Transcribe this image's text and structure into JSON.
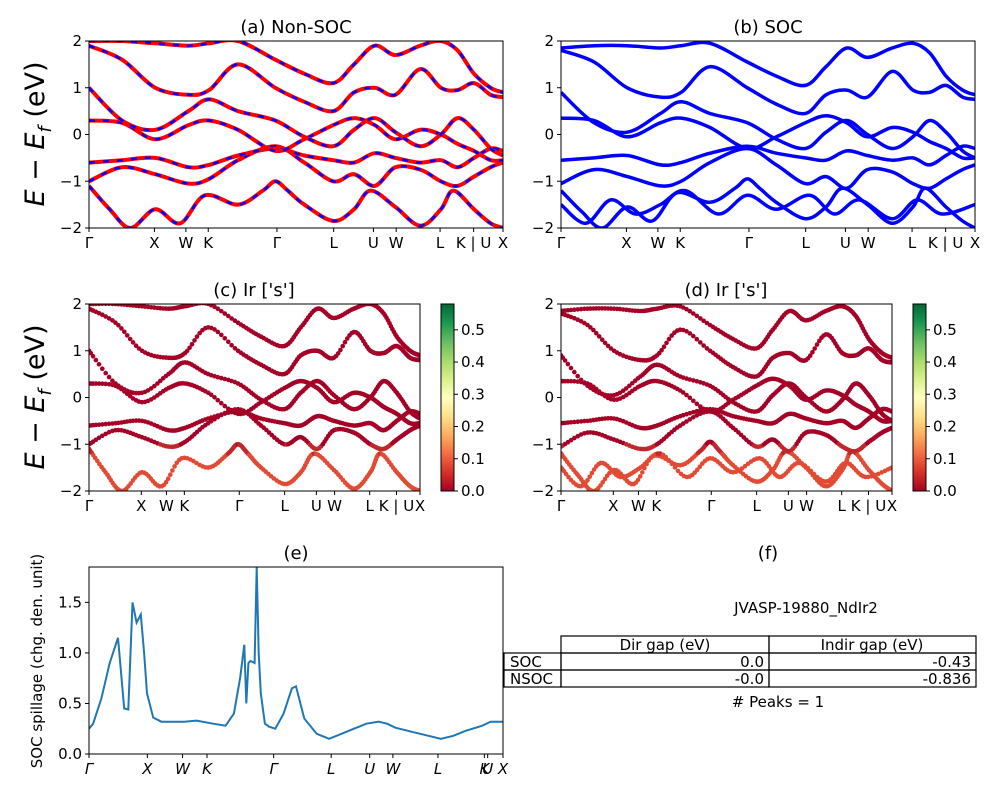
{
  "figure": {
    "titles": {
      "a": "(a) Non-SOC",
      "b": "(b) SOC",
      "c": "(c)  Ir ['s']",
      "d": "(d) Ir ['s']",
      "e": "(e)",
      "f": "(f)"
    },
    "band_ylabel": "E − E_f (eV)",
    "spillage_ylabel": "SOC spillage (chg. den. unit)"
  },
  "chart_data": [
    {
      "panel": "a",
      "type": "line",
      "title": "(a) Non-SOC",
      "ylabel": "E − E_f (eV)",
      "ylim": [
        -2,
        2
      ],
      "ytick_labels": [
        "−2",
        "−1",
        "0",
        "1",
        "2"
      ],
      "kpath_labels": [
        "Γ",
        "X",
        "W",
        "K",
        "Γ",
        "L",
        "U",
        "W",
        "L",
        "K | U",
        "X"
      ],
      "kpath_positions": [
        0,
        0.158,
        0.234,
        0.288,
        0.454,
        0.591,
        0.687,
        0.742,
        0.848,
        0.929,
        1.0
      ],
      "styles": {
        "outer": "#ff0000",
        "inner": "#0000ff",
        "dashed": true
      },
      "series": [
        {
          "x": [
            0,
            0.08,
            0.16,
            0.24,
            0.29,
            0.36,
            0.45,
            0.52,
            0.59,
            0.64,
            0.69,
            0.74,
            0.8,
            0.85,
            0.89,
            0.93,
            0.97,
            1.0
          ],
          "y": [
            -1.0,
            -0.7,
            -0.85,
            -1.05,
            -0.95,
            -0.55,
            -0.25,
            -0.6,
            -1.0,
            -0.85,
            -1.1,
            -0.7,
            -0.75,
            -1.0,
            -1.1,
            -0.9,
            -0.7,
            -0.6
          ]
        },
        {
          "x": [
            0,
            0.08,
            0.16,
            0.24,
            0.29,
            0.36,
            0.45,
            0.52,
            0.59,
            0.64,
            0.69,
            0.74,
            0.8,
            0.85,
            0.89,
            0.93,
            0.97,
            1.0
          ],
          "y": [
            -0.6,
            -0.55,
            -0.5,
            -0.7,
            -0.65,
            -0.45,
            -0.3,
            -0.45,
            -0.55,
            -0.6,
            -0.4,
            -0.5,
            -0.6,
            -0.55,
            -0.7,
            -0.5,
            -0.3,
            -0.35
          ]
        },
        {
          "x": [
            0,
            0.08,
            0.16,
            0.24,
            0.29,
            0.36,
            0.45,
            0.52,
            0.59,
            0.64,
            0.69,
            0.74,
            0.8,
            0.85,
            0.89,
            0.93,
            0.97,
            1.0
          ],
          "y": [
            0.3,
            0.25,
            -0.1,
            0.2,
            0.3,
            0.1,
            -0.35,
            -0.1,
            0.2,
            0.35,
            0.2,
            -0.1,
            0.1,
            0.0,
            -0.2,
            -0.35,
            -0.55,
            -0.55
          ]
        },
        {
          "x": [
            0,
            0.08,
            0.16,
            0.24,
            0.29,
            0.36,
            0.45,
            0.52,
            0.59,
            0.64,
            0.69,
            0.74,
            0.8,
            0.85,
            0.89,
            0.93,
            0.97,
            1.0
          ],
          "y": [
            1.0,
            0.3,
            0.1,
            0.5,
            0.75,
            0.5,
            0.3,
            -0.05,
            -0.25,
            0.1,
            0.35,
            0.05,
            -0.25,
            0.0,
            0.35,
            0.1,
            -0.3,
            -0.45
          ]
        },
        {
          "x": [
            0,
            0.08,
            0.16,
            0.24,
            0.29,
            0.36,
            0.45,
            0.52,
            0.59,
            0.64,
            0.69,
            0.74,
            0.8,
            0.85,
            0.89,
            0.93,
            0.97,
            1.0
          ],
          "y": [
            1.9,
            1.6,
            1.0,
            0.85,
            0.95,
            1.5,
            1.0,
            0.7,
            0.5,
            0.9,
            1.0,
            0.85,
            1.4,
            1.0,
            0.95,
            1.1,
            0.85,
            0.8
          ]
        },
        {
          "x": [
            0,
            0.08,
            0.16,
            0.24,
            0.29,
            0.36,
            0.45,
            0.52,
            0.59,
            0.64,
            0.69,
            0.74,
            0.8,
            0.85,
            0.89,
            0.93,
            0.97,
            1.0
          ],
          "y": [
            2.0,
            2.0,
            1.95,
            1.9,
            1.95,
            2.0,
            1.6,
            1.3,
            1.1,
            1.5,
            1.9,
            1.7,
            1.9,
            2.0,
            1.8,
            1.3,
            1.0,
            0.9
          ]
        },
        {
          "x": [
            0,
            0.05,
            0.1,
            0.16,
            0.22,
            0.28,
            0.36,
            0.42,
            0.45,
            0.48,
            0.52,
            0.59,
            0.64,
            0.68,
            0.74,
            0.8,
            0.85,
            0.88,
            0.93,
            0.97,
            1.0
          ],
          "y": [
            -1.1,
            -1.6,
            -2.0,
            -1.6,
            -1.9,
            -1.3,
            -1.5,
            -1.2,
            -1.0,
            -1.2,
            -1.5,
            -1.85,
            -1.6,
            -1.2,
            -1.55,
            -1.95,
            -1.6,
            -1.2,
            -1.6,
            -1.9,
            -2.0
          ]
        }
      ]
    },
    {
      "panel": "b",
      "type": "line",
      "title": "(b) SOC",
      "ylim": [
        -2,
        2
      ],
      "ytick_labels": [
        "−2",
        "−1",
        "0",
        "1",
        "2"
      ],
      "kpath_labels": [
        "Γ",
        "X",
        "W",
        "K",
        "Γ",
        "L",
        "U",
        "W",
        "L",
        "K | U",
        "X"
      ],
      "kpath_positions": [
        0,
        0.158,
        0.234,
        0.288,
        0.454,
        0.591,
        0.687,
        0.742,
        0.848,
        0.929,
        1.0
      ],
      "styles": {
        "color": "#0000ff"
      },
      "series": [
        {
          "x": [
            0,
            0.08,
            0.16,
            0.24,
            0.29,
            0.36,
            0.45,
            0.52,
            0.59,
            0.64,
            0.69,
            0.74,
            0.8,
            0.85,
            0.89,
            0.93,
            0.97,
            1.0
          ],
          "y": [
            -1.05,
            -0.75,
            -0.9,
            -1.1,
            -1.0,
            -0.6,
            -0.3,
            -0.65,
            -1.05,
            -0.9,
            -1.15,
            -0.75,
            -0.8,
            -1.05,
            -1.15,
            -0.95,
            -0.75,
            -0.65
          ]
        },
        {
          "x": [
            0,
            0.08,
            0.16,
            0.24,
            0.29,
            0.36,
            0.45,
            0.52,
            0.59,
            0.64,
            0.69,
            0.74,
            0.8,
            0.85,
            0.89,
            0.93,
            0.97,
            1.0
          ],
          "y": [
            -0.55,
            -0.5,
            -0.45,
            -0.65,
            -0.6,
            -0.4,
            -0.25,
            -0.4,
            -0.5,
            -0.55,
            -0.35,
            -0.45,
            -0.55,
            -0.5,
            -0.65,
            -0.45,
            -0.25,
            -0.3
          ]
        },
        {
          "x": [
            0,
            0.08,
            0.16,
            0.24,
            0.29,
            0.36,
            0.45,
            0.52,
            0.59,
            0.64,
            0.69,
            0.74,
            0.8,
            0.85,
            0.89,
            0.93,
            0.97,
            1.0
          ],
          "y": [
            0.35,
            0.3,
            -0.05,
            0.25,
            0.35,
            0.15,
            -0.3,
            -0.05,
            0.25,
            0.4,
            0.25,
            -0.05,
            0.15,
            0.05,
            -0.15,
            -0.3,
            -0.5,
            -0.5
          ]
        },
        {
          "x": [
            0,
            0.08,
            0.16,
            0.24,
            0.29,
            0.36,
            0.45,
            0.52,
            0.59,
            0.64,
            0.69,
            0.74,
            0.8,
            0.85,
            0.89,
            0.93,
            0.97,
            1.0
          ],
          "y": [
            0.9,
            0.25,
            0.05,
            0.45,
            0.7,
            0.45,
            0.25,
            -0.1,
            -0.3,
            0.05,
            0.3,
            0.0,
            -0.3,
            -0.05,
            0.3,
            0.05,
            -0.35,
            -0.5
          ]
        },
        {
          "x": [
            0,
            0.08,
            0.16,
            0.24,
            0.29,
            0.36,
            0.45,
            0.52,
            0.59,
            0.64,
            0.69,
            0.74,
            0.8,
            0.85,
            0.89,
            0.93,
            0.97,
            1.0
          ],
          "y": [
            1.8,
            1.55,
            1.0,
            0.8,
            0.9,
            1.45,
            1.0,
            0.65,
            0.45,
            0.85,
            0.95,
            0.8,
            1.35,
            0.95,
            0.9,
            1.05,
            0.8,
            0.75
          ]
        },
        {
          "x": [
            0,
            0.08,
            0.16,
            0.24,
            0.29,
            0.36,
            0.45,
            0.52,
            0.59,
            0.64,
            0.69,
            0.74,
            0.8,
            0.85,
            0.89,
            0.93,
            0.97,
            1.0
          ],
          "y": [
            1.85,
            1.9,
            1.9,
            1.85,
            1.9,
            1.95,
            1.55,
            1.25,
            1.05,
            1.45,
            1.85,
            1.65,
            1.85,
            1.95,
            1.75,
            1.25,
            0.95,
            0.85
          ]
        },
        {
          "x": [
            0,
            0.05,
            0.1,
            0.16,
            0.22,
            0.28,
            0.36,
            0.42,
            0.45,
            0.48,
            0.52,
            0.59,
            0.64,
            0.68,
            0.74,
            0.8,
            0.85,
            0.88,
            0.93,
            0.97,
            1.0
          ],
          "y": [
            -1.2,
            -1.65,
            -2.0,
            -1.55,
            -1.85,
            -1.25,
            -1.45,
            -1.15,
            -0.95,
            -1.15,
            -1.45,
            -1.8,
            -1.55,
            -1.15,
            -1.5,
            -1.9,
            -1.55,
            -1.15,
            -1.55,
            -1.85,
            -2.0
          ]
        },
        {
          "x": [
            0,
            0.06,
            0.12,
            0.18,
            0.24,
            0.3,
            0.38,
            0.45,
            0.52,
            0.6,
            0.66,
            0.72,
            0.8,
            0.86,
            0.92,
            1.0
          ],
          "y": [
            -1.5,
            -1.9,
            -1.4,
            -1.7,
            -1.5,
            -1.2,
            -1.7,
            -1.3,
            -1.6,
            -1.3,
            -1.7,
            -1.4,
            -1.8,
            -1.4,
            -1.7,
            -1.5
          ]
        }
      ]
    },
    {
      "panel": "c",
      "type": "scatter",
      "title": "(c)  Ir ['s']",
      "ylabel": "E − E_f (eV)",
      "ylim": [
        -2,
        2
      ],
      "ytick_labels": [
        "−2",
        "−1",
        "0",
        "1",
        "2"
      ],
      "kpath_labels": [
        "Γ",
        "X",
        "W",
        "K",
        "Γ",
        "L",
        "U",
        "W",
        "L",
        "K | U",
        "X"
      ],
      "kpath_positions": [
        0,
        0.158,
        0.234,
        0.288,
        0.454,
        0.591,
        0.687,
        0.742,
        0.848,
        0.929,
        1.0
      ],
      "colorbar": {
        "vmin": 0.0,
        "vmax": 0.58,
        "cmap": "RdYlGn",
        "tick_labels": [
          "0.0",
          "0.1",
          "0.2",
          "0.3",
          "0.4",
          "0.5"
        ],
        "ticks": [
          0.0,
          0.1,
          0.2,
          0.3,
          0.4,
          0.5
        ]
      },
      "bands_same_as": "a"
    },
    {
      "panel": "d",
      "type": "scatter",
      "title": "(d) Ir ['s']",
      "ylim": [
        -2,
        2
      ],
      "ytick_labels": [
        "−2",
        "−1",
        "0",
        "1",
        "2"
      ],
      "kpath_labels": [
        "Γ",
        "X",
        "W",
        "K",
        "Γ",
        "L",
        "U",
        "W",
        "L",
        "K | U",
        "X"
      ],
      "kpath_positions": [
        0,
        0.158,
        0.234,
        0.288,
        0.454,
        0.591,
        0.687,
        0.742,
        0.848,
        0.929,
        1.0
      ],
      "colorbar": {
        "vmin": 0.0,
        "vmax": 0.58,
        "cmap": "RdYlGn",
        "tick_labels": [
          "0.0",
          "0.1",
          "0.2",
          "0.3",
          "0.4",
          "0.5"
        ],
        "ticks": [
          0.0,
          0.1,
          0.2,
          0.3,
          0.4,
          0.5
        ]
      },
      "bands_same_as": "b"
    },
    {
      "panel": "e",
      "type": "line",
      "title": "(e)",
      "ylabel": "SOC spillage (chg. den. unit)",
      "ylim": [
        0,
        1.85
      ],
      "yticks": [
        0.0,
        0.5,
        1.0,
        1.5
      ],
      "ytick_labels": [
        "0.0",
        "0.5",
        "1.0",
        "1.5"
      ],
      "xtick_labels": [
        "Γ",
        "X",
        "W",
        "K",
        "Γ",
        "L",
        "U",
        "W",
        "L",
        "K",
        "U",
        "X"
      ],
      "xtick_positions": [
        0,
        0.141,
        0.226,
        0.285,
        0.446,
        0.585,
        0.678,
        0.734,
        0.843,
        0.955,
        0.963,
        1.0
      ],
      "color": "#1f77b4",
      "x": [
        0,
        0.01,
        0.03,
        0.05,
        0.07,
        0.085,
        0.095,
        0.105,
        0.115,
        0.125,
        0.133,
        0.14,
        0.155,
        0.175,
        0.2,
        0.23,
        0.26,
        0.3,
        0.33,
        0.35,
        0.365,
        0.375,
        0.38,
        0.385,
        0.39,
        0.4,
        0.405,
        0.41,
        0.415,
        0.425,
        0.435,
        0.45,
        0.47,
        0.49,
        0.5,
        0.52,
        0.55,
        0.58,
        0.61,
        0.64,
        0.67,
        0.7,
        0.72,
        0.74,
        0.78,
        0.82,
        0.85,
        0.88,
        0.91,
        0.95,
        0.97,
        1.0
      ],
      "y": [
        0.25,
        0.3,
        0.55,
        0.9,
        1.15,
        0.45,
        0.44,
        1.5,
        1.3,
        1.38,
        1.0,
        0.6,
        0.36,
        0.32,
        0.32,
        0.32,
        0.33,
        0.3,
        0.28,
        0.4,
        0.75,
        1.08,
        0.5,
        0.9,
        0.92,
        0.9,
        1.85,
        1.0,
        0.6,
        0.3,
        0.27,
        0.25,
        0.4,
        0.65,
        0.67,
        0.35,
        0.2,
        0.15,
        0.2,
        0.25,
        0.3,
        0.32,
        0.3,
        0.26,
        0.22,
        0.18,
        0.15,
        0.18,
        0.23,
        0.28,
        0.32,
        0.32
      ]
    },
    {
      "panel": "f",
      "type": "table",
      "title": "(f)",
      "subtitle": "JVASP-19880_NdIr2",
      "columns": [
        "Dir gap (eV)",
        "Indir gap (eV)"
      ],
      "rows": [
        {
          "label": "SOC",
          "dir_gap": "0.0",
          "indir_gap": "-0.43"
        },
        {
          "label": "NSOC",
          "dir_gap": "-0.0",
          "indir_gap": "-0.836"
        }
      ],
      "footer": "# Peaks = 1"
    }
  ]
}
